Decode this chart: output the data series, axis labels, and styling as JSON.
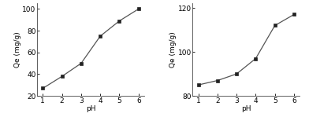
{
  "left": {
    "x": [
      1,
      2,
      3,
      4,
      5,
      6
    ],
    "y": [
      27,
      38,
      50,
      75,
      89,
      100
    ],
    "xlabel": "pH",
    "ylabel": "Qe (mg/g)",
    "ylim": [
      20,
      105
    ],
    "yticks": [
      20,
      40,
      60,
      80,
      100
    ],
    "xlim": [
      0.7,
      6.3
    ],
    "xticks": [
      1,
      2,
      3,
      4,
      5,
      6
    ]
  },
  "right": {
    "x": [
      1,
      2,
      3,
      4,
      5,
      6
    ],
    "y": [
      85,
      87,
      90,
      97,
      112,
      117
    ],
    "xlabel": "pH",
    "ylabel": "Qe (mg/g)",
    "ylim": [
      80,
      122
    ],
    "yticks": [
      80,
      100,
      120
    ],
    "xlim": [
      0.7,
      6.3
    ],
    "xticks": [
      1,
      2,
      3,
      4,
      5,
      6
    ]
  },
  "line_color": "#555555",
  "marker": "s",
  "marker_color": "#222222",
  "marker_size": 3,
  "linewidth": 0.9,
  "font_size": 6.5,
  "label_font_size": 6.5,
  "bg_color": "#ffffff"
}
